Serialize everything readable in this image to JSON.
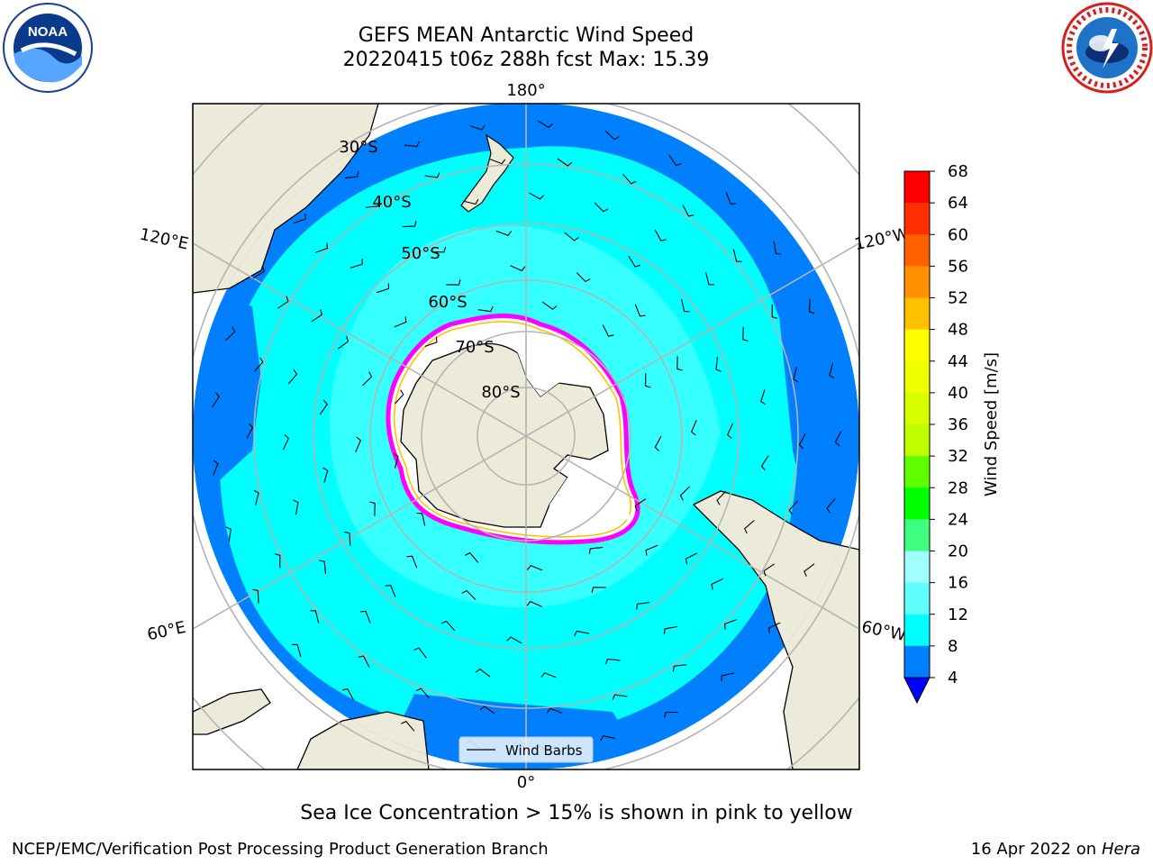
{
  "title": {
    "line1": "GEFS MEAN Antarctic Wind Speed",
    "line2": "20220415 t06z 288h fcst   Max: 15.39"
  },
  "logos": {
    "left": {
      "icon": "noaa-logo",
      "text": "NOAA"
    },
    "right": {
      "icon": "nws-logo"
    }
  },
  "map": {
    "projection": "south-polar-stereographic",
    "meridian_labels": [
      "180°",
      "120°E",
      "120°W",
      "60°E",
      "60°W",
      "0°"
    ],
    "parallel_labels": [
      "30°S",
      "40°S",
      "50°S",
      "60°S",
      "70°S",
      "80°S"
    ],
    "legend": {
      "label": "Wind Barbs"
    },
    "colors": {
      "land": "#ecebd9",
      "ice_shelf": "#ffffff",
      "wind_4_8": "#0080ff",
      "wind_8_12": "#00ffff",
      "wind_12_16": "#40ffff",
      "sea_ice_edge": "#ff00ff",
      "sea_ice_high": "#ffc000",
      "grid": "#b4b4b4"
    }
  },
  "colorbar": {
    "label": "Wind Speed [m/s]",
    "ticks": [
      "68",
      "64",
      "60",
      "56",
      "52",
      "48",
      "44",
      "40",
      "36",
      "32",
      "28",
      "24",
      "20",
      "16",
      "12",
      "8",
      "4"
    ],
    "colors": [
      "#ff0000",
      "#ff3000",
      "#ff6000",
      "#ff9000",
      "#ffc000",
      "#ffff00",
      "#eeff00",
      "#d8ff00",
      "#c0ff00",
      "#60ff00",
      "#00ff00",
      "#40ff80",
      "#a0ffff",
      "#60ffff",
      "#00ffff",
      "#0080ff"
    ],
    "extend_min_color": "#0000ff"
  },
  "notes": {
    "bottom": "Sea Ice Concentration > 15% is shown in pink to yellow",
    "footer_left": "NCEP/EMC/Verification Post Processing Product Generation Branch",
    "footer_date": "16 Apr 2022 on ",
    "footer_host": "Hera"
  }
}
